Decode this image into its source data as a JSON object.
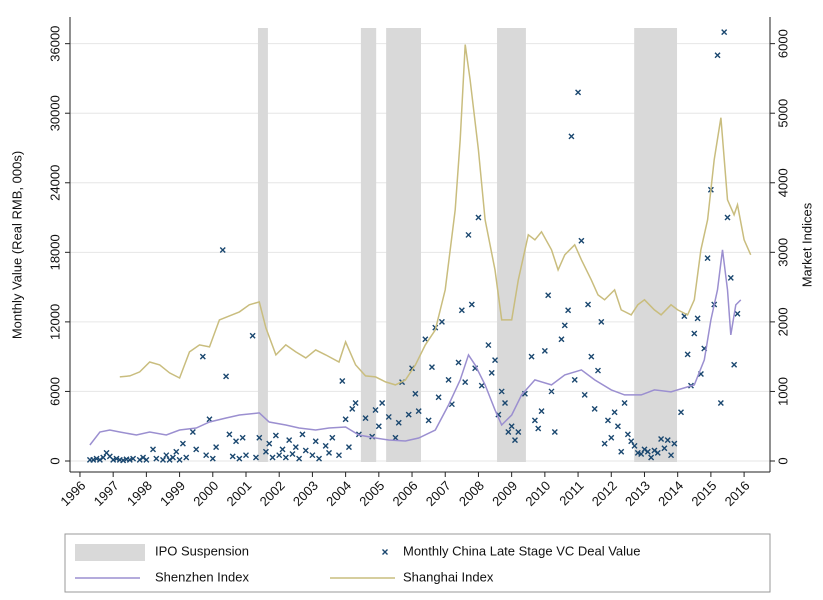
{
  "chart_data": {
    "type": "combo",
    "ylabel": "Monthly Value (Real RMB, 000s)",
    "y2label": "Market Indices",
    "xlim": [
      1995.7,
      2016.78
    ],
    "xticks": [
      1996,
      1997,
      1998,
      1999,
      2000,
      2001,
      2002,
      2003,
      2004,
      2005,
      2006,
      2007,
      2008,
      2009,
      2010,
      2011,
      2012,
      2013,
      2014,
      2015,
      2016
    ],
    "ylim": [
      -950,
      38300
    ],
    "yticks": [
      0,
      6000,
      12000,
      18000,
      24000,
      30000,
      36000
    ],
    "y2lim": [
      -158,
      6383
    ],
    "y2ticks": [
      0,
      1000,
      2000,
      3000,
      4000,
      5000,
      6000
    ],
    "grid": true,
    "legend": "bottom",
    "shaded": {
      "name": "IPO Suspension",
      "color": "#d9d9d9",
      "ranges": [
        [
          2001.36,
          2001.66
        ],
        [
          2004.46,
          2004.92
        ],
        [
          2005.22,
          2006.27
        ],
        [
          2008.56,
          2009.43
        ],
        [
          2012.69,
          2013.98
        ]
      ]
    },
    "series": [
      {
        "name": "Monthly China Late Stage VC Deal Value",
        "type": "scatter",
        "color": "#1a476f",
        "x": [
          1996.3,
          1996.4,
          1996.5,
          1996.6,
          1996.7,
          1996.8,
          1996.9,
          1997.0,
          1997.1,
          1997.2,
          1997.3,
          1997.4,
          1997.5,
          1997.6,
          1997.8,
          1997.9,
          1998.0,
          1998.2,
          1998.3,
          1998.5,
          1998.6,
          1998.7,
          1998.8,
          1998.9,
          1999.0,
          1999.1,
          1999.2,
          1999.4,
          1999.5,
          1999.7,
          1999.8,
          1999.9,
          2000.0,
          2000.1,
          2000.3,
          2000.4,
          2000.5,
          2000.6,
          2000.7,
          2000.8,
          2000.9,
          2001.0,
          2001.2,
          2001.3,
          2001.4,
          2001.6,
          2001.7,
          2001.8,
          2001.9,
          2002.0,
          2002.1,
          2002.2,
          2002.3,
          2002.4,
          2002.5,
          2002.6,
          2002.7,
          2002.8,
          2003.0,
          2003.1,
          2003.2,
          2003.4,
          2003.5,
          2003.6,
          2003.8,
          2003.9,
          2004.0,
          2004.1,
          2004.2,
          2004.3,
          2004.4,
          2004.6,
          2004.8,
          2004.9,
          2005.0,
          2005.1,
          2005.3,
          2005.5,
          2005.6,
          2005.7,
          2005.9,
          2006.0,
          2006.1,
          2006.2,
          2006.4,
          2006.5,
          2006.6,
          2006.7,
          2006.8,
          2006.9,
          2007.1,
          2007.2,
          2007.4,
          2007.5,
          2007.6,
          2007.7,
          2007.8,
          2007.9,
          2008.0,
          2008.1,
          2008.3,
          2008.4,
          2008.5,
          2008.6,
          2008.7,
          2008.8,
          2008.9,
          2009.0,
          2009.1,
          2009.2,
          2009.4,
          2009.6,
          2009.7,
          2009.8,
          2009.9,
          2010.0,
          2010.1,
          2010.2,
          2010.3,
          2010.5,
          2010.6,
          2010.7,
          2010.8,
          2010.9,
          2011.0,
          2011.1,
          2011.2,
          2011.3,
          2011.4,
          2011.5,
          2011.6,
          2011.7,
          2011.8,
          2011.9,
          2012.0,
          2012.1,
          2012.2,
          2012.3,
          2012.4,
          2012.5,
          2012.6,
          2012.7,
          2012.8,
          2012.9,
          2013.0,
          2013.1,
          2013.2,
          2013.3,
          2013.4,
          2013.5,
          2013.6,
          2013.7,
          2013.8,
          2013.9,
          2014.1,
          2014.2,
          2014.3,
          2014.4,
          2014.5,
          2014.6,
          2014.7,
          2014.8,
          2014.9,
          2015.0,
          2015.1,
          2015.2,
          2015.3,
          2015.4,
          2015.5,
          2015.6,
          2015.7,
          2015.8
        ],
        "values": [
          100,
          100,
          200,
          100,
          300,
          700,
          400,
          100,
          200,
          100,
          50,
          150,
          100,
          200,
          100,
          300,
          100,
          1000,
          200,
          100,
          500,
          100,
          300,
          800,
          100,
          1500,
          300,
          2500,
          1000,
          9000,
          500,
          3600,
          200,
          1200,
          18200,
          7300,
          2300,
          400,
          1700,
          200,
          2000,
          500,
          10800,
          300,
          2000,
          800,
          1500,
          300,
          2200,
          500,
          1000,
          300,
          1800,
          600,
          1200,
          200,
          2300,
          900,
          500,
          1700,
          200,
          1300,
          700,
          2000,
          500,
          6900,
          3600,
          1200,
          4500,
          5000,
          2300,
          3700,
          2100,
          4400,
          3000,
          5000,
          3800,
          2000,
          3300,
          6800,
          4000,
          8000,
          5800,
          4300,
          10500,
          3500,
          8100,
          11500,
          5500,
          12000,
          7000,
          4900,
          8500,
          13000,
          6800,
          19500,
          13500,
          8000,
          21000,
          6500,
          10000,
          7600,
          8700,
          4000,
          6000,
          5000,
          2500,
          3000,
          1800,
          2500,
          5800,
          9000,
          3500,
          2800,
          4300,
          9500,
          14300,
          6000,
          2500,
          10500,
          11700,
          13000,
          28000,
          7000,
          31800,
          19000,
          5700,
          13500,
          9000,
          4500,
          7800,
          12000,
          1500,
          3500,
          2000,
          4200,
          3000,
          800,
          5000,
          2300,
          1700,
          1300,
          700,
          600,
          1000,
          800,
          300,
          900,
          700,
          1900,
          1100,
          1800,
          500,
          1500,
          4200,
          12500,
          9200,
          6500,
          11000,
          12300,
          7500,
          9700,
          17500,
          23400,
          13500,
          35000,
          5000,
          37000,
          21000,
          15800,
          8300,
          12700
        ]
      },
      {
        "name": "Shenzhen Index",
        "type": "line",
        "color": "#9b8fd0",
        "x": [
          1996.3,
          1996.6,
          1996.9,
          1997.2,
          1997.7,
          1998.1,
          1998.6,
          1999.0,
          1999.5,
          1999.9,
          2000.4,
          2000.8,
          2001.4,
          2001.7,
          2002.2,
          2002.6,
          2003.1,
          2003.5,
          2004.0,
          2004.4,
          2004.9,
          2005.3,
          2005.8,
          2006.2,
          2006.7,
          2007.1,
          2007.45,
          2007.7,
          2007.9,
          2008.2,
          2008.5,
          2008.7,
          2009.0,
          2009.3,
          2009.7,
          2010.2,
          2010.6,
          2011.1,
          2011.5,
          2012.0,
          2012.4,
          2012.9,
          2013.3,
          2013.8,
          2014.2,
          2014.5,
          2014.8,
          2015.0,
          2015.2,
          2015.35,
          2015.5,
          2015.6,
          2015.75,
          2015.9
        ],
        "values": [
          1381,
          2504,
          2676,
          2504,
          2245,
          2504,
          2245,
          2676,
          2849,
          3367,
          3712,
          3971,
          4144,
          3367,
          3108,
          2849,
          2676,
          2849,
          2935,
          2245,
          1986,
          1813,
          1727,
          1986,
          2676,
          4835,
          6993,
          9151,
          8288,
          6561,
          4403,
          3108,
          3971,
          5698,
          6993,
          6561,
          7424,
          7856,
          6993,
          6129,
          5698,
          5698,
          6129,
          5957,
          6302,
          6561,
          8719,
          12173,
          14763,
          18216,
          14763,
          10878,
          13468,
          13899
        ]
      },
      {
        "name": "Shanghai Index",
        "type": "line",
        "axis": "y2",
        "color": "#c9bd7e",
        "x": [
          1997.2,
          1997.5,
          1997.8,
          1998.1,
          1998.4,
          1998.7,
          1999.0,
          1999.3,
          1999.6,
          1999.9,
          2000.2,
          2000.5,
          2000.8,
          2001.1,
          2001.4,
          2001.6,
          2001.9,
          2002.2,
          2002.5,
          2002.8,
          2003.1,
          2003.4,
          2003.8,
          2004.0,
          2004.3,
          2004.6,
          2004.9,
          2005.2,
          2005.5,
          2005.8,
          2006.1,
          2006.4,
          2006.7,
          2007.0,
          2007.3,
          2007.45,
          2007.6,
          2007.75,
          2008.0,
          2008.2,
          2008.5,
          2008.7,
          2009.0,
          2009.2,
          2009.5,
          2009.7,
          2009.9,
          2010.2,
          2010.4,
          2010.6,
          2010.9,
          2011.1,
          2011.4,
          2011.6,
          2011.8,
          2012.1,
          2012.3,
          2012.6,
          2012.8,
          2013.0,
          2013.3,
          2013.5,
          2013.8,
          2014.0,
          2014.3,
          2014.5,
          2014.7,
          2014.9,
          2015.1,
          2015.3,
          2015.5,
          2015.7,
          2015.8,
          2016.0,
          2016.2
        ],
        "values": [
          1209,
          1223,
          1281,
          1424,
          1381,
          1266,
          1194,
          1568,
          1669,
          1640,
          2029,
          2086,
          2144,
          2245,
          2288,
          1914,
          1525,
          1669,
          1568,
          1482,
          1597,
          1525,
          1424,
          1712,
          1381,
          1223,
          1209,
          1137,
          1094,
          1165,
          1381,
          1669,
          1885,
          2460,
          3612,
          4619,
          5986,
          5482,
          4475,
          3468,
          2748,
          2029,
          2029,
          2604,
          3252,
          3180,
          3295,
          3036,
          2748,
          2964,
          3108,
          2892,
          2604,
          2388,
          2317,
          2460,
          2173,
          2101,
          2245,
          2317,
          2173,
          2101,
          2245,
          2173,
          2101,
          2317,
          3036,
          3468,
          4331,
          4935,
          3755,
          3540,
          3683,
          3180,
          2964
        ]
      }
    ]
  }
}
